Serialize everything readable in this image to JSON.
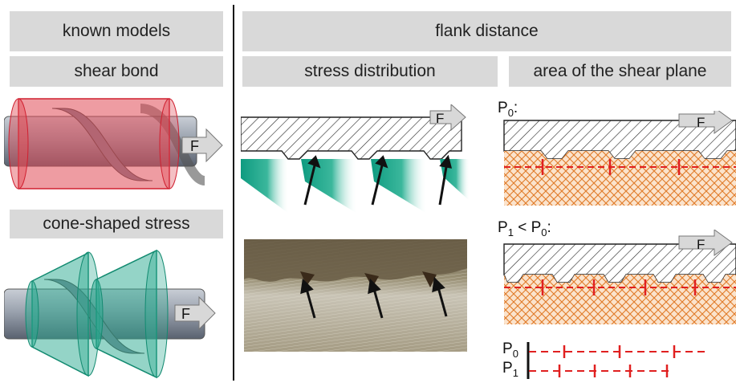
{
  "headers": {
    "known_models": "known models",
    "flank_distance": "flank distance",
    "shear_bond": "shear bond",
    "stress_distribution": "stress distribution",
    "area_shear_plane": "area of the shear plane",
    "cone_shaped_stress": "cone-shaped stress"
  },
  "force_label": "F",
  "p0_label": "P",
  "p0_sub": "0",
  "p1_label": "P",
  "p1_sub": "1",
  "p0_colon": ":",
  "comparison_lt": "<",
  "colors": {
    "header_bg": "#d9d9d9",
    "shear_bond": "#e04b55",
    "cone": "#2aa98f",
    "hatch": "#333333",
    "red_dash": "#e02020",
    "orange_mesh": "#e07a28",
    "teal_stress": "#0e9b80"
  },
  "icons": [
    "arrow-icon",
    "screw-icon"
  ]
}
